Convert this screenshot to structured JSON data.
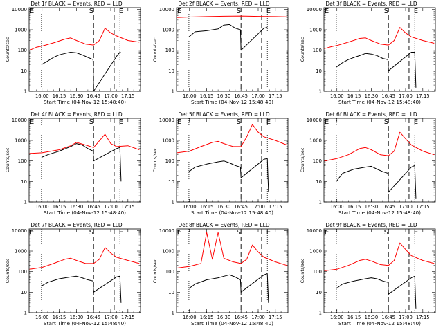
{
  "chart_data": {
    "type": "line",
    "shared": {
      "xlabel": "Start Time (04-Nov-12 15:48:40)",
      "ylabel": "Counts/sec",
      "x_ticks": [
        "16:00",
        "16:15",
        "16:30",
        "16:45",
        "17:00",
        "17:15"
      ],
      "y_ticks": [
        "1",
        "10",
        "100",
        "1000",
        "10000"
      ],
      "y_scale": "log",
      "ylim": [
        1,
        12000
      ],
      "xlim": [
        "15:48:40",
        "17:26:00"
      ],
      "grid": false,
      "series_names": [
        "Events",
        "LLD"
      ],
      "series_colors": {
        "Events": "#000000",
        "LLD": "#ff0000"
      },
      "vline_markers": [
        "E",
        "S",
        "E"
      ],
      "vline_times_dashed": [
        "16:45:00",
        "17:03:00"
      ],
      "vline_times_dotted": [
        "15:59:30",
        "17:08:00"
      ]
    },
    "panels": [
      {
        "title": "Det 1f BLACK = Events, RED = LLD",
        "series": [
          {
            "name": "Events",
            "x": [
              "15:59:30",
              "16:05",
              "16:10",
              "16:15",
              "16:20",
              "16:25",
              "16:30",
              "16:35",
              "16:40",
              "16:44:30",
              "16:45",
              "17:05",
              "17:08",
              "17:09"
            ],
            "values": [
              20,
              30,
              45,
              60,
              70,
              80,
              75,
              60,
              45,
              35,
              1.0,
              50,
              80,
              75
            ]
          },
          {
            "name": "LLD",
            "x": [
              "15:49",
              "15:55",
              "16:00",
              "16:10",
              "16:20",
              "16:25",
              "16:30",
              "16:38",
              "16:45",
              "16:50",
              "16:55",
              "17:00",
              "17:05",
              "17:15",
              "17:25"
            ],
            "values": [
              100,
              140,
              160,
              230,
              350,
              400,
              300,
              200,
              180,
              300,
              1200,
              700,
              500,
              300,
              250
            ]
          }
        ]
      },
      {
        "title": "Det 2f BLACK = Events, RED = LLD",
        "series": [
          {
            "name": "Events",
            "x": [
              "15:59:30",
              "16:05",
              "16:15",
              "16:25",
              "16:30",
              "16:35",
              "16:40",
              "16:44:30",
              "16:45",
              "17:05",
              "17:08"
            ],
            "values": [
              450,
              800,
              900,
              1100,
              1700,
              1800,
              1200,
              1000,
              100,
              1200,
              1300
            ]
          },
          {
            "name": "LLD",
            "x": [
              "15:49",
              "16:00",
              "16:15",
              "16:30",
              "16:45",
              "17:00",
              "17:15",
              "17:25"
            ],
            "values": [
              4000,
              4200,
              4400,
              4600,
              4700,
              4500,
              4400,
              4300
            ]
          }
        ]
      },
      {
        "title": "Det 3f BLACK = Events, RED = LLD",
        "series": [
          {
            "name": "Events",
            "x": [
              "15:59:30",
              "16:05",
              "16:10",
              "16:15",
              "16:20",
              "16:25",
              "16:30",
              "16:35",
              "16:40",
              "16:44:30",
              "16:45",
              "17:05",
              "17:08",
              "17:09"
            ],
            "values": [
              15,
              25,
              35,
              45,
              55,
              70,
              65,
              55,
              40,
              35,
              10,
              80,
              80,
              1.5
            ]
          },
          {
            "name": "LLD",
            "x": [
              "15:49",
              "15:55",
              "16:00",
              "16:10",
              "16:20",
              "16:25",
              "16:30",
              "16:38",
              "16:45",
              "16:50",
              "16:55",
              "17:00",
              "17:05",
              "17:15",
              "17:25"
            ],
            "values": [
              120,
              150,
              170,
              250,
              380,
              400,
              300,
              200,
              180,
              300,
              1300,
              700,
              450,
              300,
              220
            ]
          }
        ]
      },
      {
        "title": "Det 4f BLACK = Events, RED = LLD",
        "series": [
          {
            "name": "Events",
            "x": [
              "15:59:30",
              "16:05",
              "16:15",
              "16:25",
              "16:30",
              "16:35",
              "16:40",
              "16:44:30",
              "16:45",
              "17:05",
              "17:08",
              "17:09"
            ],
            "values": [
              150,
              200,
              300,
              500,
              700,
              600,
              400,
              300,
              100,
              400,
              450,
              10
            ]
          },
          {
            "name": "LLD",
            "x": [
              "15:49",
              "16:00",
              "16:15",
              "16:25",
              "16:30",
              "16:38",
              "16:45",
              "16:55",
              "17:00",
              "17:05",
              "17:15",
              "17:25"
            ],
            "values": [
              230,
              250,
              350,
              550,
              800,
              600,
              450,
              2000,
              700,
              500,
              550,
              350
            ]
          }
        ]
      },
      {
        "title": "Det 5f BLACK = Events, RED = LLD",
        "series": [
          {
            "name": "Events",
            "x": [
              "15:59:30",
              "16:05",
              "16:15",
              "16:25",
              "16:30",
              "16:35",
              "16:40",
              "16:44:30",
              "16:45",
              "17:05",
              "17:08",
              "17:09"
            ],
            "values": [
              30,
              50,
              70,
              90,
              100,
              80,
              60,
              50,
              15,
              120,
              130,
              3
            ]
          },
          {
            "name": "LLD",
            "x": [
              "15:49",
              "16:00",
              "16:10",
              "16:20",
              "16:25",
              "16:30",
              "16:38",
              "16:45",
              "16:50",
              "16:55",
              "17:00",
              "17:05",
              "17:15",
              "17:25"
            ],
            "values": [
              250,
              300,
              500,
              800,
              900,
              700,
              500,
              500,
              1500,
              6000,
              2500,
              1500,
              1000,
              600
            ]
          }
        ]
      },
      {
        "title": "Det 6f BLACK = Events, RED = LLD",
        "series": [
          {
            "name": "Events",
            "x": [
              "15:59:30",
              "16:05",
              "16:15",
              "16:25",
              "16:30",
              "16:35",
              "16:40",
              "16:44:30",
              "16:45",
              "17:05",
              "17:08",
              "17:09"
            ],
            "values": [
              10,
              25,
              40,
              50,
              55,
              40,
              30,
              25,
              3,
              50,
              60,
              1.5
            ]
          },
          {
            "name": "LLD",
            "x": [
              "15:49",
              "16:00",
              "16:10",
              "16:20",
              "16:25",
              "16:30",
              "16:38",
              "16:45",
              "16:50",
              "16:55",
              "17:00",
              "17:05",
              "17:15",
              "17:25"
            ],
            "values": [
              100,
              130,
              200,
              400,
              450,
              350,
              200,
              180,
              300,
              2500,
              1200,
              600,
              300,
              200
            ]
          }
        ]
      },
      {
        "title": "Det 7f BLACK = Events, RED = LLD",
        "series": [
          {
            "name": "Events",
            "x": [
              "15:59:30",
              "16:05",
              "16:15",
              "16:25",
              "16:30",
              "16:35",
              "16:40",
              "16:44:30",
              "16:45",
              "17:05",
              "17:08",
              "17:09"
            ],
            "values": [
              20,
              30,
              45,
              55,
              60,
              50,
              40,
              35,
              10,
              55,
              60,
              3
            ]
          },
          {
            "name": "LLD",
            "x": [
              "15:49",
              "16:00",
              "16:10",
              "16:20",
              "16:25",
              "16:30",
              "16:38",
              "16:45",
              "16:50",
              "16:55",
              "17:00",
              "17:05",
              "17:15",
              "17:25"
            ],
            "values": [
              130,
              160,
              250,
              400,
              450,
              350,
              250,
              250,
              400,
              1500,
              800,
              500,
              350,
              250
            ]
          }
        ]
      },
      {
        "title": "Det 8f BLACK = Events, RED = LLD",
        "series": [
          {
            "name": "Events",
            "x": [
              "15:59:30",
              "16:05",
              "16:15",
              "16:25",
              "16:30",
              "16:35",
              "16:40",
              "16:44:30",
              "16:45",
              "17:05",
              "17:08",
              "17:09"
            ],
            "values": [
              15,
              25,
              40,
              50,
              60,
              70,
              55,
              40,
              10,
              70,
              80,
              3
            ]
          },
          {
            "name": "LLD",
            "x": [
              "15:49",
              "16:00",
              "16:10",
              "16:15",
              "16:20",
              "16:25",
              "16:30",
              "16:38",
              "16:45",
              "16:50",
              "16:55",
              "17:00",
              "17:05",
              "17:15",
              "17:25"
            ],
            "values": [
              150,
              180,
              250,
              8000,
              400,
              8000,
              450,
              300,
              250,
              400,
              2000,
              900,
              500,
              300,
              200
            ]
          }
        ]
      },
      {
        "title": "Det 9f BLACK = Events, RED = LLD",
        "series": [
          {
            "name": "Events",
            "x": [
              "15:59:30",
              "16:05",
              "16:15",
              "16:25",
              "16:30",
              "16:35",
              "16:40",
              "16:44:30",
              "16:45",
              "17:05",
              "17:08",
              "17:09"
            ],
            "values": [
              15,
              25,
              35,
              45,
              50,
              45,
              35,
              30,
              8,
              50,
              60,
              1.5
            ]
          },
          {
            "name": "LLD",
            "x": [
              "15:49",
              "16:00",
              "16:10",
              "16:20",
              "16:25",
              "16:30",
              "16:38",
              "16:45",
              "16:50",
              "16:55",
              "17:00",
              "17:05",
              "17:15",
              "17:25"
            ],
            "values": [
              110,
              130,
              200,
              350,
              400,
              330,
              220,
              200,
              350,
              2500,
              1200,
              600,
              350,
              250
            ]
          }
        ]
      }
    ]
  }
}
